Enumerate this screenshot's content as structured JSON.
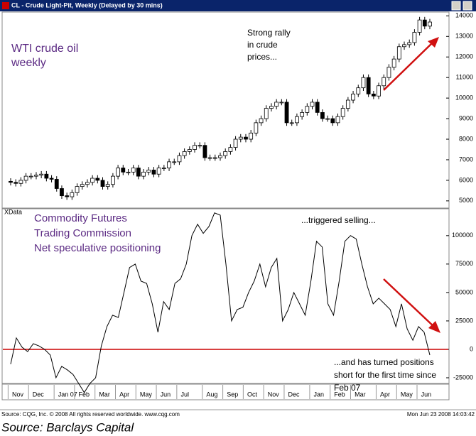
{
  "window_title": "CL - Crude Light-Pit, Weekly (Delayed by 30 mins)",
  "chart_data": [
    {
      "type": "candlestick",
      "annotation_left": [
        "WTI crude oil",
        "weekly"
      ],
      "annotation_right": [
        "Strong rally",
        "in crude",
        "prices..."
      ],
      "categories": [
        "Nov",
        null,
        null,
        null,
        "Dec",
        null,
        null,
        null,
        null,
        "Jan 07",
        null,
        null,
        null,
        "Feb",
        null,
        null,
        null,
        "Mar",
        null,
        null,
        null,
        "Apr",
        null,
        null,
        null,
        "May",
        null,
        null,
        null,
        "Jun",
        null,
        null,
        null,
        "Jul",
        null,
        null,
        null,
        null,
        "Aug",
        null,
        null,
        null,
        "Sep",
        null,
        null,
        null,
        "Oct",
        null,
        null,
        null,
        "Nov",
        null,
        null,
        null,
        "Dec",
        null,
        null,
        null,
        null,
        "Jan",
        null,
        null,
        null,
        "Feb",
        null,
        null,
        null,
        "Mar",
        null,
        null,
        null,
        null,
        "Apr",
        null,
        null,
        null,
        "May",
        null,
        null,
        null,
        "Jun",
        null,
        null
      ],
      "open": [
        5950,
        5900,
        5850,
        6000,
        6200,
        6200,
        6250,
        6300,
        6100,
        6050,
        5600,
        5250,
        5200,
        5400,
        5700,
        5800,
        5900,
        6100,
        6000,
        5700,
        5800,
        6200,
        6600,
        6400,
        6400,
        6600,
        6200,
        6400,
        6500,
        6300,
        6600,
        6600,
        6900,
        6900,
        7200,
        7400,
        7500,
        7700,
        7700,
        7100,
        7100,
        7100,
        7200,
        7400,
        7600,
        8000,
        8100,
        8000,
        8300,
        8800,
        9000,
        9500,
        9600,
        9800,
        9800,
        8800,
        8800,
        9100,
        9300,
        9600,
        9800,
        9300,
        9000,
        9000,
        8800,
        9100,
        9500,
        9900,
        10200,
        10500,
        11000,
        10200,
        10100,
        10600,
        11000,
        11500,
        11900,
        12500,
        12600,
        12700,
        13200,
        13800,
        13500
      ],
      "high": [
        6100,
        6050,
        6150,
        6350,
        6350,
        6400,
        6450,
        6450,
        6250,
        6200,
        5750,
        5400,
        5550,
        5850,
        5950,
        6050,
        6250,
        6250,
        6150,
        5950,
        6350,
        6750,
        6750,
        6550,
        6750,
        6750,
        6550,
        6650,
        6650,
        6750,
        6750,
        7050,
        7050,
        7350,
        7550,
        7650,
        7850,
        7850,
        7850,
        7250,
        7250,
        7350,
        7550,
        7750,
        8150,
        8250,
        8250,
        8450,
        8950,
        9150,
        9650,
        9750,
        9950,
        9950,
        9950,
        8950,
        9250,
        9450,
        9750,
        9950,
        9950,
        9450,
        9150,
        9150,
        9250,
        9650,
        10050,
        10350,
        10650,
        11150,
        11150,
        10350,
        10750,
        11150,
        11650,
        12050,
        12650,
        12750,
        12850,
        13350,
        13950,
        13950,
        13850
      ],
      "low": [
        5750,
        5700,
        5700,
        5850,
        6050,
        6050,
        6100,
        5950,
        5900,
        5450,
        5100,
        5050,
        5050,
        5250,
        5550,
        5650,
        5750,
        5850,
        5550,
        5550,
        5650,
        6050,
        6250,
        6250,
        6250,
        6050,
        6050,
        6250,
        6150,
        6150,
        6450,
        6450,
        6750,
        6750,
        7050,
        7250,
        7350,
        7550,
        6950,
        6950,
        6950,
        6950,
        7050,
        7250,
        7450,
        7850,
        7850,
        7850,
        8150,
        8650,
        8850,
        9350,
        9450,
        9650,
        8650,
        8650,
        8650,
        8950,
        9150,
        9450,
        9150,
        8850,
        8850,
        8650,
        8650,
        8950,
        9350,
        9750,
        10050,
        10350,
        10050,
        9950,
        9950,
        10450,
        10850,
        11350,
        11750,
        12350,
        12450,
        12550,
        13050,
        13350,
        13350
      ],
      "close": [
        5900,
        5850,
        6000,
        6200,
        6200,
        6250,
        6300,
        6100,
        6050,
        5600,
        5250,
        5200,
        5400,
        5700,
        5800,
        5900,
        6100,
        6000,
        5700,
        5800,
        6200,
        6600,
        6400,
        6400,
        6600,
        6200,
        6400,
        6500,
        6300,
        6600,
        6600,
        6900,
        6900,
        7200,
        7400,
        7500,
        7700,
        7700,
        7100,
        7100,
        7100,
        7200,
        7400,
        7600,
        8000,
        8100,
        8000,
        8300,
        8800,
        9000,
        9500,
        9600,
        9800,
        9800,
        8800,
        8800,
        9100,
        9300,
        9600,
        9800,
        9300,
        9000,
        9000,
        8800,
        9100,
        9500,
        9900,
        10200,
        10500,
        11000,
        10200,
        10100,
        10600,
        11000,
        11500,
        11900,
        12500,
        12600,
        12700,
        13200,
        13800,
        13500,
        13700
      ],
      "up_color": "#ffffff",
      "down_color": "#000000",
      "ylim": [
        4650,
        14150
      ],
      "yticks": [
        5000,
        6000,
        7000,
        8000,
        9000,
        10000,
        11000,
        12000,
        13000,
        14000
      ]
    },
    {
      "type": "line",
      "panel_label": "XData",
      "annotation_left": [
        "Commodity Futures",
        "Trading Commission",
        "Net speculative positioning"
      ],
      "annotation_top": "...triggered selling...",
      "annotation_bottom": [
        "...and has turned positions",
        "short for the first time since",
        "Feb 07"
      ],
      "values": [
        -13000,
        10000,
        2000,
        -2000,
        5000,
        3000,
        0,
        -5000,
        -25000,
        -15000,
        -18000,
        -22000,
        -30000,
        -38000,
        -30000,
        -25000,
        3000,
        20000,
        30000,
        28000,
        50000,
        72000,
        75000,
        60000,
        58000,
        40000,
        15000,
        42000,
        35000,
        58000,
        62000,
        75000,
        100000,
        110000,
        102000,
        108000,
        120000,
        118000,
        75000,
        25000,
        35000,
        37000,
        50000,
        60000,
        75000,
        55000,
        72000,
        80000,
        25000,
        35000,
        50000,
        40000,
        30000,
        60000,
        95000,
        90000,
        40000,
        30000,
        60000,
        95000,
        100000,
        97000,
        75000,
        55000,
        40000,
        45000,
        40000,
        35000,
        20000,
        40000,
        18000,
        8000,
        20000,
        15000,
        -5000
      ],
      "color": "#000000",
      "reference_line": {
        "value": 0,
        "color": "#cc0000"
      },
      "ylim": [
        -30000,
        123000
      ],
      "yticks": [
        -25000,
        0,
        25000,
        50000,
        75000,
        100000
      ]
    }
  ],
  "footer_left": "Source: CQG, Inc. © 2008 All rights reserved worldwide. www.cqg.com",
  "footer_right": "Mon Jun 23 2008 14:03:42",
  "source": "Source: Barclays Capital"
}
